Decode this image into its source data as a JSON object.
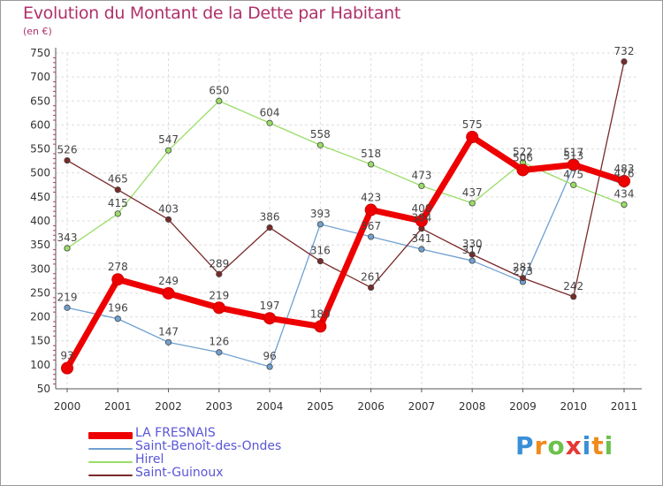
{
  "title": "Evolution du Montant de la Dette par Habitant",
  "subtitle": "(en €)",
  "logo_text": "Proxiti",
  "chart_data": {
    "type": "line",
    "title": "Evolution du Montant de la Dette par Habitant",
    "subtitle": "(en €)",
    "xlabel": "",
    "ylabel": "",
    "x": [
      "2000",
      "2001",
      "2002",
      "2003",
      "2004",
      "2005",
      "2006",
      "2007",
      "2008",
      "2009",
      "2010",
      "2011"
    ],
    "ylim": [
      50,
      750
    ],
    "yticks": [
      "50",
      "100",
      "150",
      "200",
      "250",
      "300",
      "350",
      "400",
      "450",
      "500",
      "550",
      "600",
      "650",
      "700",
      "750"
    ],
    "grid": true,
    "legend_position": "bottom-left",
    "series": [
      {
        "name": "LA FRESNAIS",
        "color": "#ee0000",
        "values": [
          93,
          278,
          249,
          219,
          197,
          180,
          423,
          400,
          575,
          506,
          517,
          483
        ]
      },
      {
        "name": "Saint-Benoît-des-Ondes",
        "color": "#6fa0d0",
        "values": [
          219,
          196,
          147,
          126,
          96,
          393,
          367,
          341,
          317,
          273,
          513,
          476
        ]
      },
      {
        "name": "Hirel",
        "color": "#99dd66",
        "values": [
          343,
          415,
          547,
          650,
          604,
          558,
          518,
          473,
          437,
          522,
          475,
          434
        ]
      },
      {
        "name": "Saint-Guinoux",
        "color": "#7a2a2a",
        "values": [
          526,
          465,
          403,
          289,
          386,
          316,
          261,
          384,
          330,
          281,
          242,
          732
        ]
      }
    ]
  }
}
